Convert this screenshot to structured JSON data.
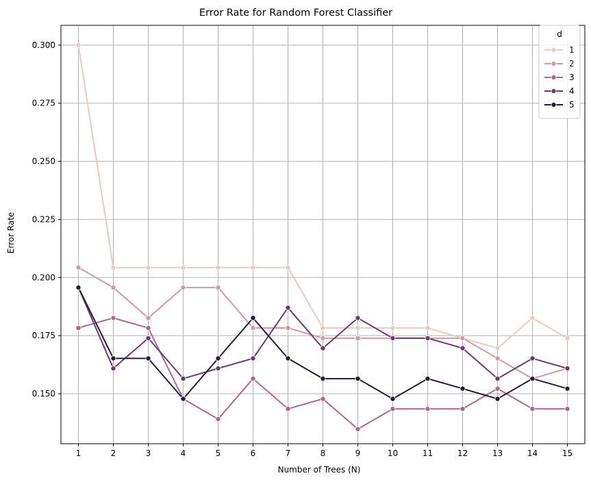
{
  "chart_data": {
    "type": "line",
    "title": "Error Rate for Random Forest Classifier",
    "xlabel": "Number of Trees (N)",
    "ylabel": "Error Rate",
    "x": [
      1,
      2,
      3,
      4,
      5,
      6,
      7,
      8,
      9,
      10,
      11,
      12,
      13,
      14,
      15
    ],
    "ylim": [
      0.1285,
      0.3085
    ],
    "yticks": [
      "0.150",
      "0.175",
      "0.200",
      "0.225",
      "0.250",
      "0.275",
      "0.300"
    ],
    "grid": true,
    "legend": {
      "title": "d",
      "position": "top-right"
    },
    "series": [
      {
        "name": "1",
        "color": "#ebc9c0",
        "values": [
          0.3,
          0.2043,
          0.2043,
          0.2043,
          0.2043,
          0.2043,
          0.2043,
          0.1783,
          0.1783,
          0.1783,
          0.1783,
          0.1739,
          0.1696,
          0.1826,
          0.1739
        ]
      },
      {
        "name": "2",
        "color": "#d19aa2",
        "values": [
          0.2043,
          0.1957,
          0.1826,
          0.1957,
          0.1957,
          0.1783,
          0.1783,
          0.1739,
          0.1739,
          0.1739,
          0.1739,
          0.1739,
          0.1652,
          0.1565,
          0.1609
        ]
      },
      {
        "name": "3",
        "color": "#a96a8e",
        "values": [
          0.1783,
          0.1826,
          0.1783,
          0.1478,
          0.1391,
          0.1565,
          0.1435,
          0.1478,
          0.1348,
          0.1435,
          0.1435,
          0.1435,
          0.1522,
          0.1435,
          0.1435
        ]
      },
      {
        "name": "4",
        "color": "#6e3a6e",
        "values": [
          0.1957,
          0.1609,
          0.1739,
          0.1565,
          0.1609,
          0.1652,
          0.187,
          0.1696,
          0.1826,
          0.1739,
          0.1739,
          0.1696,
          0.1565,
          0.1652,
          0.1609
        ]
      },
      {
        "name": "5",
        "color": "#2a1a3a",
        "values": [
          0.1957,
          0.1652,
          0.1652,
          0.1478,
          0.1652,
          0.1826,
          0.1652,
          0.1565,
          0.1565,
          0.1478,
          0.1565,
          0.1522,
          0.1478,
          0.1565,
          0.1522
        ]
      }
    ]
  }
}
